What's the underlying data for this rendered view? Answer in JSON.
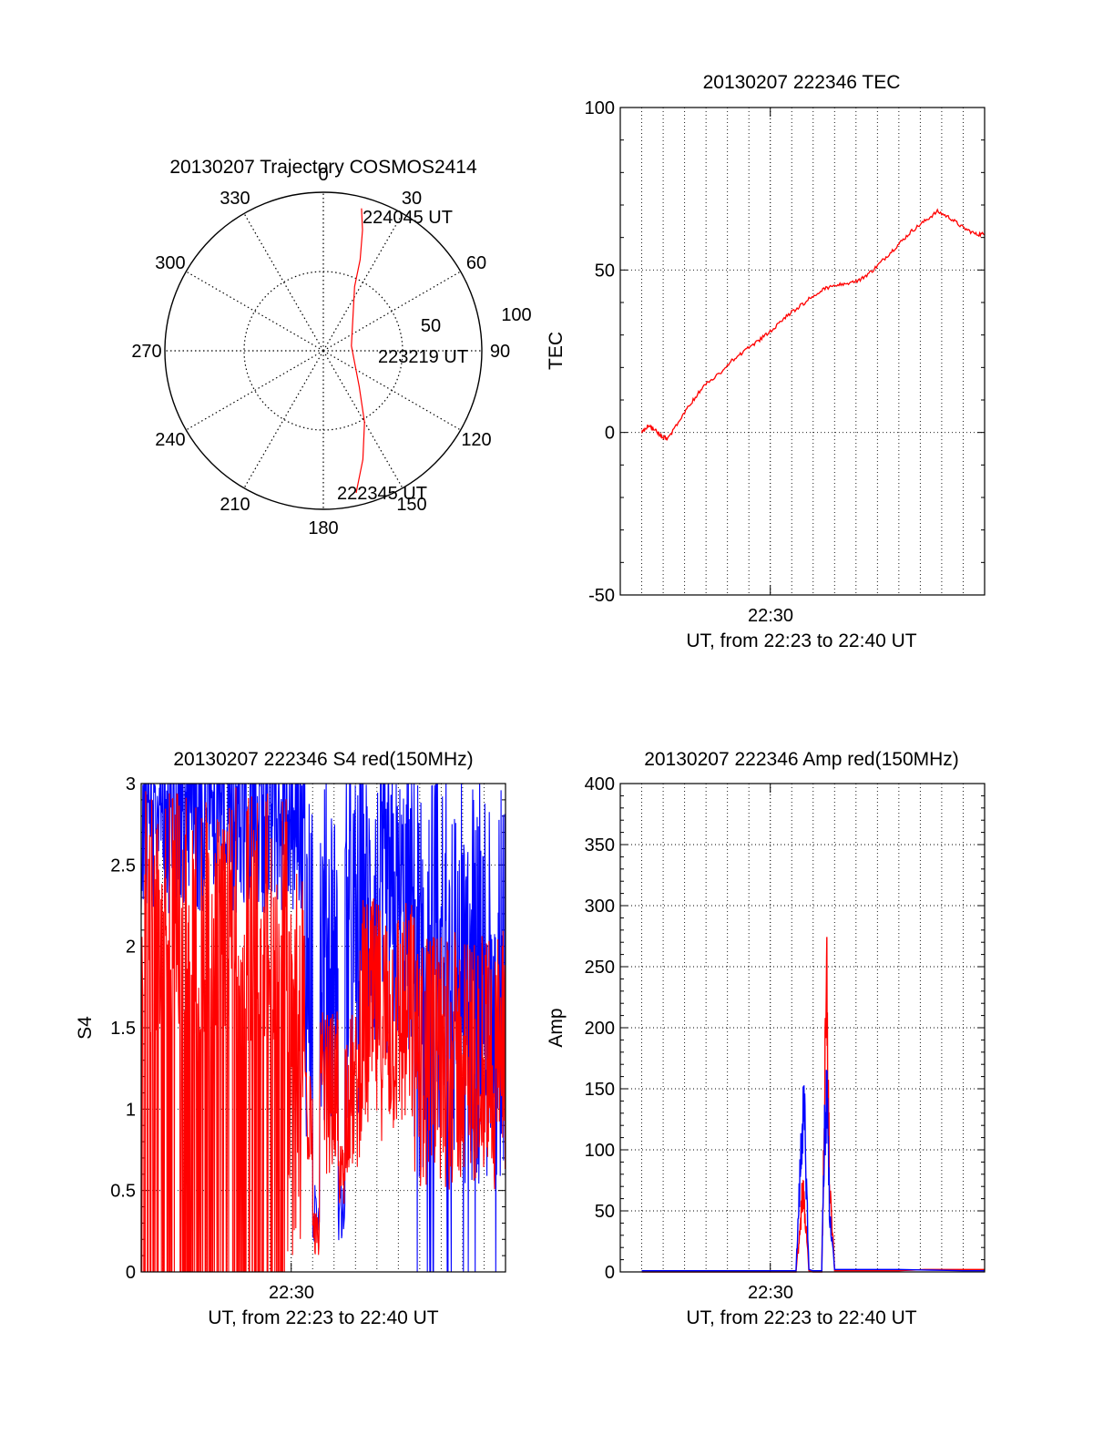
{
  "chart_data": [
    {
      "type": "polar",
      "title": "20130207 Trajectory COSMOS2414",
      "angle_labels": [
        "0",
        "30",
        "60",
        "90",
        "120",
        "150",
        "180",
        "210",
        "240",
        "270",
        "300",
        "330"
      ],
      "radius_labels": [
        "50",
        "100"
      ],
      "rlim": [
        0,
        100
      ],
      "grid": true,
      "trajectory": {
        "points": [
          [
            15,
            93
          ],
          [
            18,
            80
          ],
          [
            22,
            62
          ],
          [
            26,
            45
          ],
          [
            80,
            18
          ],
          [
            135,
            32
          ],
          [
            150,
            52
          ],
          [
            160,
            73
          ],
          [
            167,
            92
          ]
        ]
      },
      "annotations": [
        "224045 UT",
        "223219 UT",
        "222345 UT"
      ],
      "colors": {
        "trajectory": "#ff0000"
      }
    },
    {
      "type": "line",
      "title": "20130207 222346 TEC",
      "xlabel": "UT, from 22:23 to 22:40 UT",
      "ylabel": "TEC",
      "xlim": [
        22.3833,
        22.6667
      ],
      "ylim": [
        -50,
        100
      ],
      "yticks": [
        -50,
        0,
        50,
        100
      ],
      "xticks": [
        {
          "value": 22.5,
          "label": "22:30"
        }
      ],
      "grid": true,
      "series": [
        {
          "color": "#ff0000",
          "x": [
            22.4,
            22.405,
            22.41,
            22.415,
            22.42,
            22.43,
            22.44,
            22.45,
            22.46,
            22.47,
            22.48,
            22.49,
            22.5,
            22.51,
            22.52,
            22.53,
            22.54,
            22.55,
            22.56,
            22.57,
            22.58,
            22.59,
            22.6,
            22.61,
            22.62,
            22.63,
            22.64,
            22.65,
            22.66,
            22.6667
          ],
          "y": [
            0,
            2,
            1,
            -1,
            -2,
            4,
            10,
            15,
            18,
            22,
            25,
            28,
            31,
            35,
            38,
            41,
            44,
            45,
            46,
            47,
            50,
            54,
            58,
            62,
            65,
            68,
            66,
            63,
            61,
            61
          ]
        }
      ]
    },
    {
      "type": "line",
      "title": "20130207 222346 S4 red(150MHz)",
      "xlabel": "UT, from 22:23 to 22:40 UT",
      "ylabel": "S4",
      "xlim": [
        22.3833,
        22.6667
      ],
      "ylim": [
        0,
        3
      ],
      "yticks": [
        0,
        0.5,
        1,
        1.5,
        2,
        2.5,
        3
      ],
      "xticks": [
        {
          "value": 22.5,
          "label": "22:30"
        }
      ],
      "grid": true,
      "series": [
        {
          "color": "#0000ff"
        },
        {
          "color": "#ff0000"
        }
      ]
    },
    {
      "type": "line",
      "title": "20130207 222346 Amp red(150MHz)",
      "xlabel": "UT, from 22:23 to 22:40 UT",
      "ylabel": "Amp",
      "xlim": [
        22.3833,
        22.6667
      ],
      "ylim": [
        0,
        400
      ],
      "yticks": [
        0,
        50,
        100,
        150,
        200,
        250,
        300,
        350,
        400
      ],
      "xticks": [
        {
          "value": 22.5,
          "label": "22:30"
        }
      ],
      "grid": true,
      "series": [
        {
          "color": "#0000ff",
          "x": [
            22.4,
            22.5,
            22.52,
            22.523,
            22.525,
            22.527,
            22.53,
            22.533,
            22.54,
            22.542,
            22.544,
            22.546,
            22.55,
            22.6,
            22.65,
            22.6667
          ],
          "y": [
            1,
            1,
            1,
            90,
            155,
            140,
            2,
            1,
            1,
            130,
            180,
            60,
            2,
            2,
            1,
            1
          ]
        },
        {
          "color": "#ff0000",
          "x": [
            22.4,
            22.5,
            22.52,
            22.523,
            22.525,
            22.527,
            22.53,
            22.533,
            22.54,
            22.542,
            22.544,
            22.546,
            22.55,
            22.6,
            22.62,
            22.6667
          ],
          "y": [
            0,
            0,
            0,
            40,
            80,
            60,
            1,
            0,
            0,
            150,
            280,
            90,
            1,
            1,
            2,
            2
          ]
        }
      ]
    }
  ]
}
